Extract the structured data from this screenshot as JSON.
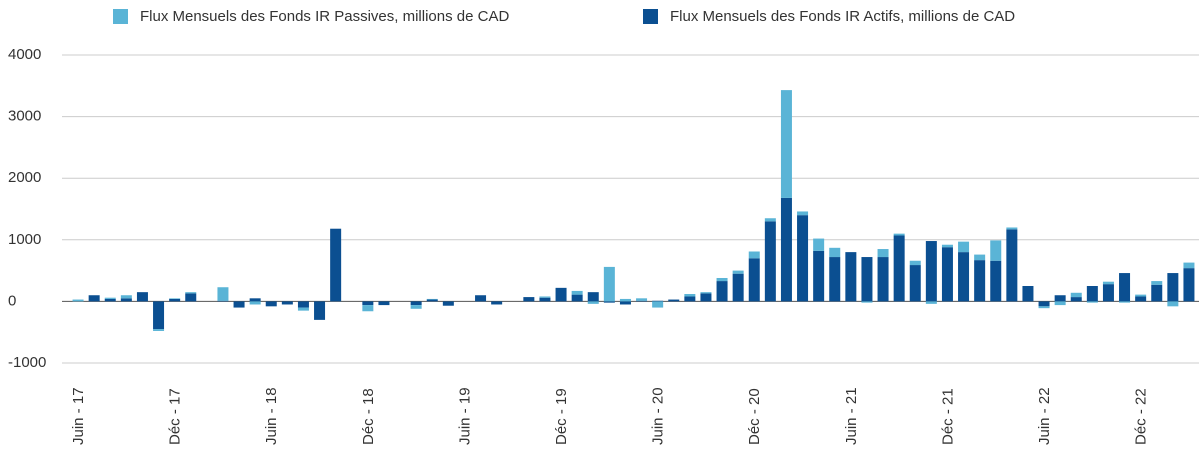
{
  "chart_data": {
    "type": "stacked_bar",
    "categories": [
      "Juin - 17",
      null,
      null,
      null,
      null,
      null,
      "Déc - 17",
      null,
      null,
      null,
      null,
      null,
      "Juin - 18",
      null,
      null,
      null,
      null,
      null,
      "Déc - 18",
      null,
      null,
      null,
      null,
      null,
      "Juin - 19",
      null,
      null,
      null,
      null,
      null,
      "Déc - 19",
      null,
      null,
      null,
      null,
      null,
      "Juin - 20",
      null,
      null,
      null,
      null,
      null,
      "Déc - 20",
      null,
      null,
      null,
      null,
      null,
      "Juin - 21",
      null,
      null,
      null,
      null,
      null,
      "Déc - 21",
      null,
      null,
      null,
      null,
      null,
      "Juin - 22",
      null,
      null,
      null,
      null,
      null,
      "Déc - 22",
      null,
      null,
      null
    ],
    "series": [
      {
        "name": "Flux Mensuels des Fonds IR Passives, millions de CAD",
        "color": "#5ab4d6",
        "values": [
          30,
          0,
          20,
          50,
          0,
          -30,
          10,
          20,
          0,
          220,
          0,
          -50,
          0,
          0,
          -50,
          0,
          0,
          0,
          -100,
          0,
          0,
          -60,
          10,
          0,
          0,
          0,
          0,
          0,
          0,
          20,
          0,
          60,
          -40,
          560,
          40,
          40,
          -100,
          0,
          40,
          20,
          50,
          50,
          110,
          50,
          1750,
          60,
          200,
          150,
          0,
          -20,
          130,
          30,
          70,
          -40,
          40,
          170,
          90,
          330,
          30,
          0,
          -30,
          -60,
          70,
          -20,
          40,
          -20,
          30,
          60,
          -80,
          90
        ]
      },
      {
        "name": "Flux Mensuels des Fonds IR Actifs, millions de CAD",
        "color": "#0b4f91",
        "values": [
          0,
          100,
          40,
          50,
          150,
          -450,
          40,
          130,
          0,
          10,
          -100,
          50,
          -80,
          -50,
          -100,
          -300,
          1180,
          0,
          -60,
          -60,
          0,
          -60,
          30,
          -70,
          0,
          100,
          -50,
          0,
          70,
          60,
          220,
          110,
          150,
          -20,
          -50,
          10,
          10,
          30,
          80,
          130,
          330,
          450,
          700,
          1300,
          1680,
          1400,
          820,
          720,
          800,
          720,
          720,
          1070,
          590,
          980,
          880,
          800,
          670,
          660,
          1170,
          250,
          -80,
          100,
          70,
          250,
          280,
          460,
          80,
          270,
          460,
          540
        ]
      }
    ],
    "ylim": [
      -1000,
      4000
    ],
    "yticks": [
      -1000,
      0,
      1000,
      2000,
      3000,
      4000
    ],
    "grid": true,
    "legend": "top"
  }
}
